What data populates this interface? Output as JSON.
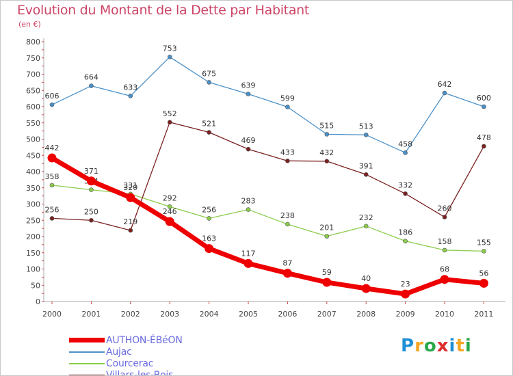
{
  "chart_data": {
    "type": "line",
    "title": "Evolution du Montant de la Dette par Habitant",
    "subtitle": "(en €)",
    "x": [
      "2000",
      "2001",
      "2002",
      "2003",
      "2004",
      "2005",
      "2006",
      "2007",
      "2008",
      "2009",
      "2010",
      "2011"
    ],
    "ylim": [
      0,
      800
    ],
    "yticks": [
      0,
      50,
      100,
      150,
      200,
      250,
      300,
      350,
      400,
      450,
      500,
      550,
      600,
      650,
      700,
      750,
      800
    ],
    "grid": false,
    "legend_position": "bottom-left",
    "series": [
      {
        "name": "AUTHON-ÉBéON",
        "color": "#ee0000",
        "values": [
          442,
          371,
          320,
          246,
          163,
          117,
          87,
          59,
          40,
          23,
          68,
          56
        ]
      },
      {
        "name": "Aujac",
        "color": "#4a90c8",
        "values": [
          606,
          664,
          633,
          753,
          675,
          639,
          599,
          515,
          513,
          458,
          642,
          600
        ]
      },
      {
        "name": "Courcerac",
        "color": "#8ccc4c",
        "values": [
          358,
          344,
          331,
          292,
          256,
          283,
          238,
          201,
          232,
          186,
          158,
          155
        ]
      },
      {
        "name": "Villars-les-Bois",
        "color": "#7a2020",
        "values": [
          256,
          250,
          219,
          552,
          521,
          469,
          433,
          432,
          391,
          332,
          260,
          478
        ]
      }
    ]
  },
  "logo": {
    "letters": [
      "P",
      "r",
      "o",
      "x",
      "i",
      "t",
      "i"
    ]
  }
}
